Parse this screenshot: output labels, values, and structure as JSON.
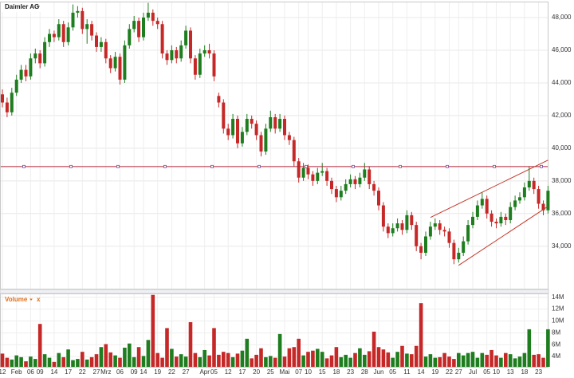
{
  "chart_data": {
    "type": "candlestick",
    "title": "Daimler AG",
    "up_color": "#1e7d1e",
    "down_color": "#c62828",
    "hline_color": "#b22234",
    "trend_color": "#c0392b",
    "grid": true,
    "categories": [
      "12",
      null,
      null,
      "Feb",
      null,
      null,
      "06",
      null,
      "09",
      null,
      null,
      "14",
      null,
      null,
      "17",
      null,
      null,
      "22",
      null,
      null,
      "27",
      null,
      "Mrz",
      null,
      null,
      "06",
      null,
      null,
      "09",
      null,
      "14",
      null,
      null,
      "19",
      null,
      null,
      "22",
      null,
      null,
      "27",
      null,
      null,
      null,
      "Apr",
      null,
      "05",
      null,
      null,
      "12",
      null,
      null,
      "17",
      null,
      null,
      "20",
      null,
      null,
      "25",
      null,
      null,
      "Mai",
      null,
      null,
      "07",
      null,
      "10",
      null,
      null,
      "15",
      null,
      null,
      "18",
      null,
      null,
      "23",
      null,
      null,
      "28",
      null,
      null,
      "Jun",
      null,
      null,
      "05",
      null,
      null,
      "11",
      null,
      null,
      "14",
      null,
      null,
      "19",
      null,
      null,
      "22",
      null,
      "27",
      null,
      null,
      "Jul",
      null,
      null,
      "05",
      null,
      "10",
      null,
      null,
      "13",
      null,
      null,
      "18",
      null,
      null,
      "23",
      null,
      null
    ],
    "open": [
      43.3,
      42.8,
      42.2,
      43.4,
      44.2,
      44.8,
      44.4,
      45.5,
      45.8,
      45.2,
      46.5,
      47.0,
      46.8,
      47.6,
      46.5,
      47.4,
      48.3,
      48.4,
      47.3,
      47.6,
      46.9,
      46.2,
      46.5,
      45.5,
      44.9,
      45.6,
      44.2,
      46.3,
      47.3,
      47.8,
      46.8,
      48.0,
      48.3,
      47.8,
      47.6,
      45.8,
      45.4,
      46.0,
      45.5,
      46.3,
      47.2,
      45.5,
      44.5,
      45.8,
      46.0,
      45.8,
      43.2,
      42.8,
      41.2,
      40.8,
      41.8,
      40.3,
      41.0,
      41.8,
      41.5,
      40.8,
      39.8,
      41.2,
      41.9,
      41.2,
      41.8,
      40.8,
      40.5,
      39.2,
      38.2,
      38.8,
      38.4,
      38.0,
      38.5,
      38.6,
      38.0,
      37.5,
      37.0,
      37.4,
      37.8,
      38.1,
      37.8,
      38.2,
      38.7,
      37.8,
      37.4,
      36.5,
      35.2,
      34.8,
      35.1,
      35.4,
      35.0,
      35.9,
      35.3,
      34.0,
      33.6,
      34.6,
      35.2,
      35.4,
      35.0,
      34.9,
      34.2,
      33.2,
      33.6,
      34.3,
      35.3,
      35.8,
      36.5,
      36.9,
      36.0,
      35.5,
      35.4,
      35.8,
      35.6,
      36.4,
      36.8,
      37.0,
      37.6,
      38.0,
      37.5,
      36.6,
      36.2
    ],
    "high": [
      43.6,
      43.1,
      43.7,
      44.5,
      45.1,
      45.1,
      45.8,
      46.1,
      46.0,
      46.8,
      47.3,
      47.2,
      47.9,
      47.8,
      47.7,
      48.8,
      48.7,
      48.6,
      47.9,
      47.8,
      47.1,
      46.8,
      46.7,
      45.7,
      45.9,
      45.8,
      46.6,
      47.6,
      48.1,
      48.0,
      48.3,
      48.9,
      48.5,
      48.0,
      47.8,
      46.0,
      46.3,
      46.2,
      46.6,
      47.5,
      47.4,
      45.7,
      46.1,
      46.3,
      46.4,
      46.0,
      43.4,
      43.0,
      41.5,
      42.1,
      42.0,
      41.3,
      42.1,
      42.0,
      41.7,
      41.0,
      41.5,
      42.3,
      42.1,
      42.1,
      42.0,
      41.0,
      40.7,
      39.4,
      39.1,
      39.0,
      38.6,
      38.8,
      39.1,
      38.8,
      38.2,
      37.7,
      37.7,
      38.1,
      38.4,
      38.3,
      38.5,
      39.1,
      38.9,
      38.0,
      37.6,
      36.7,
      35.4,
      35.4,
      35.7,
      35.6,
      36.2,
      36.1,
      35.5,
      34.2,
      34.9,
      35.5,
      35.7,
      35.6,
      35.2,
      35.1,
      34.4,
      33.9,
      34.6,
      35.6,
      36.1,
      36.8,
      37.3,
      37.1,
      36.2,
      35.7,
      36.1,
      36.0,
      36.7,
      37.1,
      37.3,
      37.9,
      38.9,
      38.2,
      37.7,
      36.8,
      37.7
    ],
    "low": [
      42.5,
      41.9,
      42.0,
      43.2,
      44.0,
      44.1,
      44.2,
      45.2,
      44.9,
      45.0,
      46.2,
      46.5,
      46.6,
      46.2,
      46.3,
      47.2,
      48.0,
      47.0,
      46.4,
      46.6,
      45.9,
      45.9,
      45.2,
      44.6,
      44.7,
      43.9,
      44.0,
      46.1,
      47.1,
      46.5,
      46.6,
      47.8,
      47.5,
      47.3,
      45.5,
      45.1,
      45.2,
      45.2,
      45.3,
      46.1,
      45.2,
      44.2,
      44.3,
      45.6,
      45.5,
      44.1,
      42.5,
      40.9,
      40.5,
      40.6,
      40.0,
      40.1,
      40.8,
      41.2,
      40.5,
      39.5,
      39.6,
      41.0,
      40.9,
      41.0,
      40.5,
      40.2,
      38.9,
      37.9,
      38.0,
      38.1,
      37.7,
      37.8,
      38.3,
      37.7,
      37.2,
      36.7,
      36.8,
      37.2,
      37.6,
      37.5,
      37.6,
      38.0,
      37.5,
      37.1,
      36.2,
      34.9,
      34.5,
      34.6,
      34.9,
      34.7,
      34.8,
      35.0,
      33.7,
      33.2,
      33.4,
      34.4,
      35.0,
      34.7,
      34.6,
      33.9,
      32.9,
      33.0,
      33.4,
      34.1,
      35.1,
      35.6,
      36.3,
      35.7,
      35.2,
      35.1,
      35.2,
      35.3,
      35.4,
      36.2,
      36.6,
      36.8,
      37.4,
      37.2,
      36.3,
      35.9,
      36.0
    ],
    "close": [
      42.8,
      42.2,
      43.4,
      44.2,
      44.8,
      44.4,
      45.5,
      45.8,
      45.2,
      46.5,
      47.0,
      46.8,
      47.6,
      46.5,
      47.4,
      48.3,
      48.4,
      47.3,
      47.6,
      46.9,
      46.2,
      46.5,
      45.5,
      44.9,
      45.6,
      44.2,
      46.3,
      47.3,
      47.8,
      46.8,
      48.0,
      48.3,
      47.8,
      47.6,
      45.8,
      45.4,
      46.0,
      45.5,
      46.3,
      47.2,
      45.5,
      44.5,
      45.8,
      46.0,
      45.8,
      44.4,
      42.8,
      41.2,
      40.8,
      41.8,
      40.3,
      41.0,
      41.8,
      41.5,
      40.8,
      39.8,
      41.2,
      41.9,
      41.2,
      41.8,
      40.8,
      40.5,
      39.2,
      38.2,
      38.8,
      38.4,
      38.0,
      38.5,
      38.6,
      38.0,
      37.5,
      37.0,
      37.4,
      37.8,
      38.1,
      37.8,
      38.2,
      38.7,
      37.8,
      37.4,
      36.5,
      35.2,
      34.8,
      35.1,
      35.4,
      35.0,
      35.9,
      35.3,
      34.0,
      33.6,
      34.6,
      35.2,
      35.4,
      35.0,
      34.9,
      34.2,
      33.2,
      33.6,
      34.3,
      35.3,
      35.8,
      36.5,
      36.9,
      36.0,
      35.5,
      35.4,
      35.8,
      35.6,
      36.4,
      36.8,
      37.0,
      37.6,
      38.0,
      37.5,
      36.6,
      36.2,
      37.4
    ],
    "ylim": [
      31.4,
      48.93
    ],
    "yticks": [
      {
        "value": 34,
        "label": "34,000"
      },
      {
        "value": 36,
        "label": "36,000"
      },
      {
        "value": 38,
        "label": "38,000"
      },
      {
        "value": 40,
        "label": "40,000"
      },
      {
        "value": 42,
        "label": "42,000"
      },
      {
        "value": 44,
        "label": "44,000"
      },
      {
        "value": 46,
        "label": "46,000"
      },
      {
        "value": 48,
        "label": "48,000"
      }
    ],
    "hline": 38.88,
    "trendlines": [
      {
        "from": 91,
        "to": 116,
        "start": 35.76,
        "end": 39.27
      },
      {
        "from": 97,
        "to": 116,
        "start": 32.83,
        "end": 36.44
      }
    ],
    "volume": {
      "title": "Volume",
      "close_label": "x",
      "values": [
        4.5,
        3.8,
        3.5,
        4.2,
        3.9,
        3.2,
        4.0,
        3.6,
        9.5,
        4.4,
        3.8,
        3.1,
        4.6,
        3.9,
        5.2,
        3.4,
        3.6,
        4.8,
        3.5,
        3.9,
        4.4,
        5.6,
        6.1,
        4.7,
        4.2,
        3.8,
        5.5,
        6.2,
        3.9,
        5.6,
        4.1,
        6.8,
        14.4,
        4.6,
        3.8,
        8.8,
        5.3,
        4.0,
        4.4,
        4.0,
        9.8,
        4.6,
        3.9,
        5.1,
        4.2,
        8.8,
        4.3,
        4.8,
        4.6,
        3.9,
        4.5,
        5.0,
        7.0,
        3.7,
        4.3,
        5.4,
        3.9,
        4.1,
        3.8,
        7.8,
        4.0,
        5.4,
        5.6,
        7.0,
        4.2,
        4.8,
        5.0,
        5.3,
        4.8,
        3.7,
        4.2,
        5.6,
        3.9,
        4.3,
        3.8,
        4.6,
        5.4,
        4.3,
        4.9,
        8.2,
        5.6,
        5.2,
        4.7,
        3.8,
        4.8,
        5.8,
        4.5,
        4.4,
        5.8,
        13.0,
        4.0,
        4.4,
        3.8,
        3.9,
        4.6,
        4.0,
        3.6,
        4.6,
        4.2,
        4.6,
        4.8,
        3.8,
        4.6,
        4.3,
        5.1,
        4.2,
        3.8,
        4.6,
        4.4,
        3.7,
        4.0,
        4.6,
        8.6,
        4.3,
        4.4,
        3.8,
        8.6
      ],
      "ylim": [
        2.27,
        14.5
      ],
      "yticks": [
        {
          "value": 4,
          "label": "4M"
        },
        {
          "value": 6,
          "label": "6M"
        },
        {
          "value": 8,
          "label": "8M"
        },
        {
          "value": 10,
          "label": "10M"
        },
        {
          "value": 12,
          "label": "12M"
        },
        {
          "value": 14,
          "label": "14M"
        }
      ]
    }
  }
}
